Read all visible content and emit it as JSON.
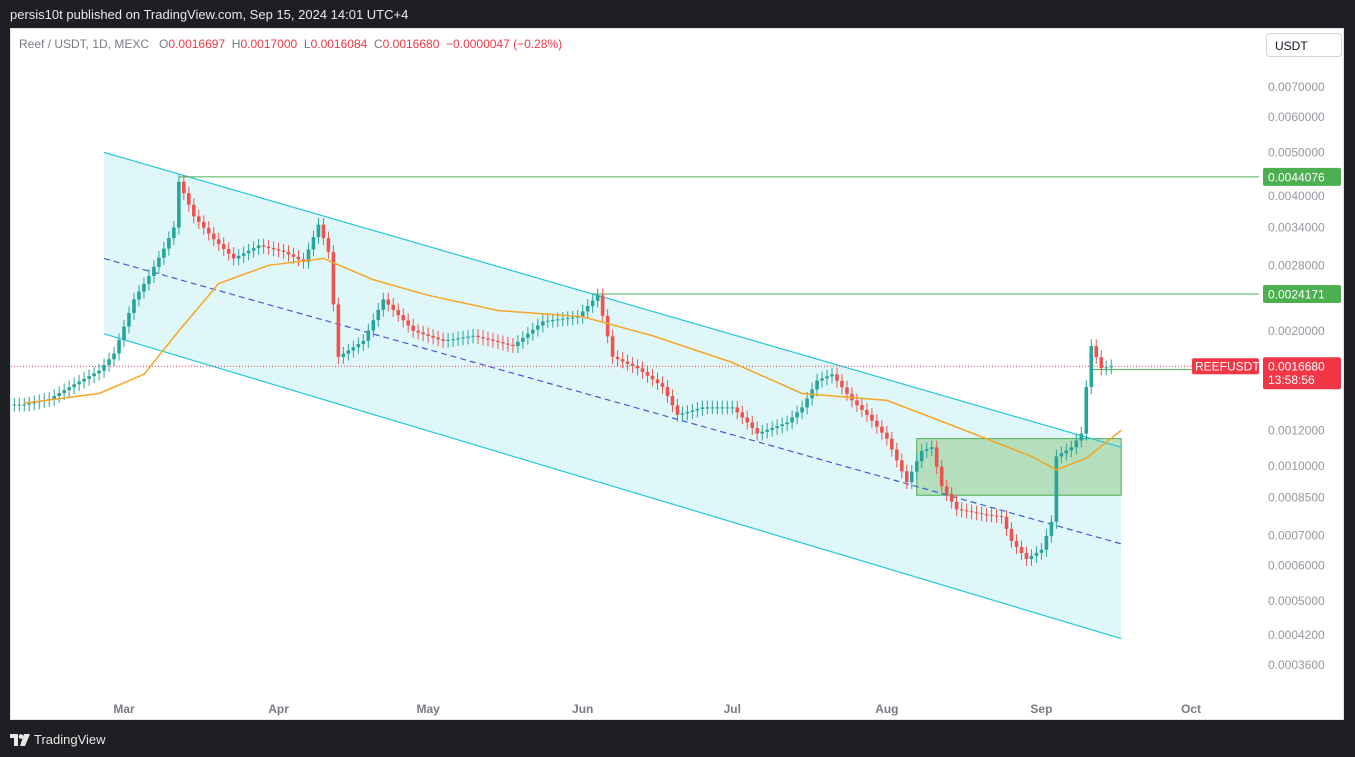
{
  "header": {
    "text": "persis10t published on TradingView.com, Sep 15, 2024 14:01 UTC+4"
  },
  "footer": {
    "brand": "TradingView",
    "icon": "tradingview-logo-icon"
  },
  "legend": {
    "symbol": "Reef / USDT, 1D, MEXC",
    "o_label": "O",
    "o": "0.0016697",
    "h_label": "H",
    "h": "0.0017000",
    "l_label": "L",
    "l": "0.0016084",
    "c_label": "C",
    "c": "0.0016680",
    "change": "−0.0000047 (−0.28%)"
  },
  "unit_button": "USDT",
  "colors": {
    "up": "#26a69a",
    "down": "#ef5350",
    "ma": "#f5a623",
    "channel": "#26c6da",
    "channel_fill": "#e0f7fa",
    "level": "#4caf50",
    "box_fill": "#a5d6a7",
    "price_tag": "#f23645"
  },
  "chart_data": {
    "type": "candlestick",
    "y_scale": "log",
    "ylim": [
      0.00031,
      0.0085
    ],
    "y_ticks": [
      "0.0070000",
      "0.0060000",
      "0.0050000",
      "0.0040000",
      "0.0034000",
      "0.0028000",
      "0.0020000",
      "0.0012000",
      "0.0010000",
      "0.0008500",
      "0.0007000",
      "0.0006000",
      "0.0005000",
      "0.0004200",
      "0.0003600"
    ],
    "x_ticks": [
      {
        "label": "Mar",
        "date": "2024-03-01"
      },
      {
        "label": "Apr",
        "date": "2024-04-01"
      },
      {
        "label": "May",
        "date": "2024-05-01"
      },
      {
        "label": "Jun",
        "date": "2024-06-01"
      },
      {
        "label": "Jul",
        "date": "2024-07-01"
      },
      {
        "label": "Aug",
        "date": "2024-08-01"
      },
      {
        "label": "Sep",
        "date": "2024-09-01"
      },
      {
        "label": "Oct",
        "date": "2024-10-01"
      }
    ],
    "price_closes": [
      {
        "date": "2024-02-10",
        "value": 0.00137
      },
      {
        "date": "2024-02-15",
        "value": 0.00141
      },
      {
        "date": "2024-02-20",
        "value": 0.00152
      },
      {
        "date": "2024-02-25",
        "value": 0.00163
      },
      {
        "date": "2024-02-28",
        "value": 0.00178
      },
      {
        "date": "2024-03-03",
        "value": 0.00235
      },
      {
        "date": "2024-03-06",
        "value": 0.00265
      },
      {
        "date": "2024-03-09",
        "value": 0.00305
      },
      {
        "date": "2024-03-11",
        "value": 0.0034
      },
      {
        "date": "2024-03-12",
        "value": 0.0043
      },
      {
        "date": "2024-03-15",
        "value": 0.0036
      },
      {
        "date": "2024-03-19",
        "value": 0.0032
      },
      {
        "date": "2024-03-23",
        "value": 0.0029
      },
      {
        "date": "2024-03-28",
        "value": 0.0031
      },
      {
        "date": "2024-04-02",
        "value": 0.003
      },
      {
        "date": "2024-04-06",
        "value": 0.00285
      },
      {
        "date": "2024-04-09",
        "value": 0.00345
      },
      {
        "date": "2024-04-11",
        "value": 0.003
      },
      {
        "date": "2024-04-13",
        "value": 0.00175
      },
      {
        "date": "2024-04-18",
        "value": 0.0019
      },
      {
        "date": "2024-04-22",
        "value": 0.00235
      },
      {
        "date": "2024-04-28",
        "value": 0.002
      },
      {
        "date": "2024-05-04",
        "value": 0.0019
      },
      {
        "date": "2024-05-10",
        "value": 0.00195
      },
      {
        "date": "2024-05-18",
        "value": 0.00185
      },
      {
        "date": "2024-05-24",
        "value": 0.0021
      },
      {
        "date": "2024-05-31",
        "value": 0.00215
      },
      {
        "date": "2024-06-04",
        "value": 0.0024
      },
      {
        "date": "2024-06-07",
        "value": 0.00175
      },
      {
        "date": "2024-06-12",
        "value": 0.00165
      },
      {
        "date": "2024-06-17",
        "value": 0.0015
      },
      {
        "date": "2024-06-20",
        "value": 0.0013
      },
      {
        "date": "2024-06-25",
        "value": 0.00135
      },
      {
        "date": "2024-07-01",
        "value": 0.00135
      },
      {
        "date": "2024-07-04",
        "value": 0.00125
      },
      {
        "date": "2024-07-06",
        "value": 0.00118
      },
      {
        "date": "2024-07-12",
        "value": 0.00125
      },
      {
        "date": "2024-07-15",
        "value": 0.00135
      },
      {
        "date": "2024-07-18",
        "value": 0.00155
      },
      {
        "date": "2024-07-21",
        "value": 0.0016
      },
      {
        "date": "2024-07-25",
        "value": 0.0014
      },
      {
        "date": "2024-07-28",
        "value": 0.0013
      },
      {
        "date": "2024-08-01",
        "value": 0.00115
      },
      {
        "date": "2024-08-05",
        "value": 0.00092
      },
      {
        "date": "2024-08-08",
        "value": 0.00108
      },
      {
        "date": "2024-08-10",
        "value": 0.0011
      },
      {
        "date": "2024-08-12",
        "value": 0.0009
      },
      {
        "date": "2024-08-15",
        "value": 0.0008
      },
      {
        "date": "2024-08-20",
        "value": 0.00078
      },
      {
        "date": "2024-08-24",
        "value": 0.00077
      },
      {
        "date": "2024-08-26",
        "value": 0.00068
      },
      {
        "date": "2024-08-29",
        "value": 0.00062
      },
      {
        "date": "2024-09-01",
        "value": 0.00065
      },
      {
        "date": "2024-09-03",
        "value": 0.00075
      },
      {
        "date": "2024-09-04",
        "value": 0.00105
      },
      {
        "date": "2024-09-07",
        "value": 0.0011
      },
      {
        "date": "2024-09-09",
        "value": 0.00118
      },
      {
        "date": "2024-09-10",
        "value": 0.0015
      },
      {
        "date": "2024-09-11",
        "value": 0.00185
      },
      {
        "date": "2024-09-13",
        "value": 0.00165
      },
      {
        "date": "2024-09-15",
        "value": 0.001668
      }
    ],
    "moving_average": [
      {
        "date": "2024-02-10",
        "value": 0.00138
      },
      {
        "date": "2024-02-25",
        "value": 0.00145
      },
      {
        "date": "2024-03-05",
        "value": 0.0016
      },
      {
        "date": "2024-03-12",
        "value": 0.002
      },
      {
        "date": "2024-03-20",
        "value": 0.00255
      },
      {
        "date": "2024-03-30",
        "value": 0.0028
      },
      {
        "date": "2024-04-10",
        "value": 0.0029
      },
      {
        "date": "2024-04-20",
        "value": 0.0026
      },
      {
        "date": "2024-05-01",
        "value": 0.0024
      },
      {
        "date": "2024-05-15",
        "value": 0.00222
      },
      {
        "date": "2024-06-01",
        "value": 0.00215
      },
      {
        "date": "2024-06-15",
        "value": 0.00195
      },
      {
        "date": "2024-07-01",
        "value": 0.0017
      },
      {
        "date": "2024-07-15",
        "value": 0.00145
      },
      {
        "date": "2024-08-01",
        "value": 0.0014
      },
      {
        "date": "2024-08-15",
        "value": 0.00122
      },
      {
        "date": "2024-08-30",
        "value": 0.00105
      },
      {
        "date": "2024-09-04",
        "value": 0.00098
      },
      {
        "date": "2024-09-10",
        "value": 0.00104
      },
      {
        "date": "2024-09-17",
        "value": 0.0012
      }
    ],
    "channel": {
      "upper": [
        {
          "date": "2024-02-26",
          "value": 0.005
        },
        {
          "date": "2024-09-17",
          "value": 0.0011
        }
      ],
      "lower": [
        {
          "date": "2024-02-26",
          "value": 0.00197
        },
        {
          "date": "2024-09-17",
          "value": 0.000412
        }
      ],
      "median": [
        {
          "date": "2024-02-26",
          "value": 0.0029
        },
        {
          "date": "2024-09-17",
          "value": 0.00067
        }
      ]
    },
    "zone": {
      "from": "2024-08-07",
      "to": "2024-09-17",
      "top": 0.00115,
      "bottom": 0.00086
    },
    "levels": [
      {
        "label": "0.0044076",
        "value": 0.0044076,
        "from": "2024-03-12"
      },
      {
        "label": "0.0024171",
        "value": 0.0024171,
        "from": "2024-06-03"
      },
      {
        "label": "0.0016386",
        "value": 0.0016386,
        "from": "2024-09-11"
      }
    ],
    "current_price": {
      "symbol": "REEFUSDT",
      "value": 0.001668,
      "label": "0.0016680",
      "countdown": "13:58:56"
    }
  }
}
